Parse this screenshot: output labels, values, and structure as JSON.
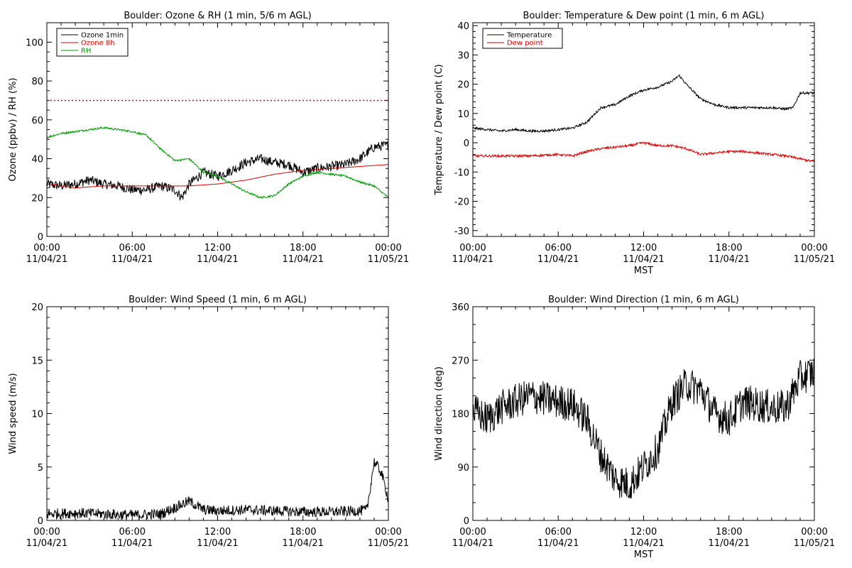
{
  "colors": {
    "black": "#000000",
    "red": "#e00000",
    "green": "#00a000",
    "background": "#ffffff"
  },
  "chart_data": [
    {
      "type": "line",
      "title": "Boulder: Ozone & RH (1 min, 5/6 m AGL)",
      "xlabel": "",
      "ylabel": "Ozone (ppbv) / RH (%)",
      "xlim": [
        "2021-11-04T00:00",
        "2021-11-05T00:00"
      ],
      "ylim": [
        0,
        110
      ],
      "yticks": [
        0,
        20,
        40,
        60,
        80,
        100
      ],
      "xticks": [
        {
          "x": "2021-11-04T00:00",
          "time": "00:00",
          "date": "11/04/21"
        },
        {
          "x": "2021-11-04T06:00",
          "time": "06:00",
          "date": "11/04/21"
        },
        {
          "x": "2021-11-04T12:00",
          "time": "12:00",
          "date": "11/04/21"
        },
        {
          "x": "2021-11-04T18:00",
          "time": "18:00",
          "date": "11/04/21"
        },
        {
          "x": "2021-11-05T00:00",
          "time": "00:00",
          "date": "11/05/21"
        }
      ],
      "legend_position": "top-left",
      "reference_lines": [
        {
          "y": 70,
          "color": "#e00000",
          "style": "dotted"
        }
      ],
      "series": [
        {
          "name": "Ozone 1min",
          "color": "#000000",
          "noise": 2.5,
          "x": [
            "2021-11-04T00:00",
            "2021-11-04T01:00",
            "2021-11-04T02:00",
            "2021-11-04T03:00",
            "2021-11-04T04:00",
            "2021-11-04T05:00",
            "2021-11-04T06:00",
            "2021-11-04T07:00",
            "2021-11-04T08:00",
            "2021-11-04T09:00",
            "2021-11-04T09:30",
            "2021-11-04T10:00",
            "2021-11-04T11:00",
            "2021-11-04T12:00",
            "2021-11-04T13:00",
            "2021-11-04T14:00",
            "2021-11-04T15:00",
            "2021-11-04T16:00",
            "2021-11-04T17:00",
            "2021-11-04T18:00",
            "2021-11-04T19:00",
            "2021-11-04T20:00",
            "2021-11-04T21:00",
            "2021-11-04T22:00",
            "2021-11-04T23:00",
            "2021-11-05T00:00"
          ],
          "y": [
            27,
            26,
            27,
            29,
            27,
            26,
            24,
            24,
            26,
            24,
            20,
            27,
            33,
            31,
            34,
            38,
            40,
            38,
            37,
            33,
            35,
            36,
            37,
            40,
            46,
            47
          ]
        },
        {
          "name": "Ozone 8h",
          "color": "#e00000",
          "noise": 0,
          "x": [
            "2021-11-04T00:00",
            "2021-11-04T02:00",
            "2021-11-04T04:00",
            "2021-11-04T06:00",
            "2021-11-04T08:00",
            "2021-11-04T10:00",
            "2021-11-04T12:00",
            "2021-11-04T14:00",
            "2021-11-04T16:00",
            "2021-11-04T18:00",
            "2021-11-04T20:00",
            "2021-11-04T22:00",
            "2021-11-05T00:00"
          ],
          "y": [
            27,
            25,
            26,
            26,
            26,
            26,
            27,
            29,
            32,
            34,
            35,
            36,
            37
          ]
        },
        {
          "name": "RH",
          "color": "#00a000",
          "noise": 0.5,
          "x": [
            "2021-11-04T00:00",
            "2021-11-04T01:00",
            "2021-11-04T02:00",
            "2021-11-04T03:00",
            "2021-11-04T04:00",
            "2021-11-04T05:00",
            "2021-11-04T06:00",
            "2021-11-04T07:00",
            "2021-11-04T08:00",
            "2021-11-04T09:00",
            "2021-11-04T10:00",
            "2021-11-04T11:00",
            "2021-11-04T12:00",
            "2021-11-04T13:00",
            "2021-11-04T14:00",
            "2021-11-04T15:00",
            "2021-11-04T16:00",
            "2021-11-04T17:00",
            "2021-11-04T18:00",
            "2021-11-04T19:00",
            "2021-11-04T20:00",
            "2021-11-04T21:00",
            "2021-11-04T22:00",
            "2021-11-04T23:00",
            "2021-11-05T00:00"
          ],
          "y": [
            51,
            53,
            54,
            55,
            56,
            55,
            54,
            52,
            45,
            39,
            40,
            33,
            31,
            27,
            23,
            20,
            21,
            27,
            31,
            33,
            32,
            31,
            28,
            26,
            20
          ]
        }
      ]
    },
    {
      "type": "line",
      "title": "Boulder: Temperature & Dew point (1 min, 6 m AGL)",
      "xlabel": "MST",
      "ylabel": "Temperature / Dew point (C)",
      "xlim": [
        "2021-11-04T00:00",
        "2021-11-05T00:00"
      ],
      "ylim": [
        -32,
        41
      ],
      "yticks": [
        -30,
        -20,
        -10,
        0,
        10,
        20,
        30,
        40
      ],
      "xticks": [
        {
          "x": "2021-11-04T00:00",
          "time": "00:00",
          "date": "11/04/21"
        },
        {
          "x": "2021-11-04T06:00",
          "time": "06:00",
          "date": "11/04/21"
        },
        {
          "x": "2021-11-04T12:00",
          "time": "12:00",
          "date": "11/04/21"
        },
        {
          "x": "2021-11-04T18:00",
          "time": "18:00",
          "date": "11/04/21"
        },
        {
          "x": "2021-11-05T00:00",
          "time": "00:00",
          "date": "11/05/21"
        }
      ],
      "legend_position": "top-left",
      "series": [
        {
          "name": "Temperature",
          "color": "#000000",
          "noise": 0.4,
          "x": [
            "2021-11-04T00:00",
            "2021-11-04T01:00",
            "2021-11-04T02:00",
            "2021-11-04T03:00",
            "2021-11-04T04:00",
            "2021-11-04T05:00",
            "2021-11-04T06:00",
            "2021-11-04T07:00",
            "2021-11-04T08:00",
            "2021-11-04T09:00",
            "2021-11-04T10:00",
            "2021-11-04T11:00",
            "2021-11-04T12:00",
            "2021-11-04T13:00",
            "2021-11-04T14:00",
            "2021-11-04T14:30",
            "2021-11-04T15:00",
            "2021-11-04T16:00",
            "2021-11-04T17:00",
            "2021-11-04T18:00",
            "2021-11-04T19:00",
            "2021-11-04T20:00",
            "2021-11-04T21:00",
            "2021-11-04T22:00",
            "2021-11-04T22:30",
            "2021-11-04T23:00",
            "2021-11-05T00:00"
          ],
          "y": [
            5,
            4.5,
            4,
            4.5,
            4,
            4,
            4.5,
            5,
            7,
            12,
            13,
            16,
            18,
            19,
            21,
            23,
            20,
            15,
            13,
            12,
            12,
            12,
            12,
            11.5,
            12,
            17,
            17
          ]
        },
        {
          "name": "Dew point",
          "color": "#e00000",
          "noise": 0.4,
          "x": [
            "2021-11-04T00:00",
            "2021-11-04T02:00",
            "2021-11-04T04:00",
            "2021-11-04T06:00",
            "2021-11-04T07:00",
            "2021-11-04T08:00",
            "2021-11-04T09:00",
            "2021-11-04T10:00",
            "2021-11-04T11:00",
            "2021-11-04T12:00",
            "2021-11-04T13:00",
            "2021-11-04T14:00",
            "2021-11-04T15:00",
            "2021-11-04T16:00",
            "2021-11-04T17:00",
            "2021-11-04T18:00",
            "2021-11-04T19:00",
            "2021-11-04T20:00",
            "2021-11-04T21:00",
            "2021-11-04T22:00",
            "2021-11-04T23:00",
            "2021-11-05T00:00"
          ],
          "y": [
            -4.5,
            -4.5,
            -4.5,
            -4,
            -4.5,
            -3,
            -2,
            -1.5,
            -1,
            0,
            -1,
            -1,
            -2,
            -4,
            -3.5,
            -3,
            -3,
            -3.5,
            -4,
            -4.5,
            -5.5,
            -6.5
          ]
        }
      ]
    },
    {
      "type": "line",
      "title": "Boulder: Wind Speed (1 min, 6 m AGL)",
      "xlabel": "",
      "ylabel": "Wind speed (m/s)",
      "xlim": [
        "2021-11-04T00:00",
        "2021-11-05T00:00"
      ],
      "ylim": [
        0,
        20
      ],
      "yticks": [
        0,
        5,
        10,
        15,
        20
      ],
      "xticks": [
        {
          "x": "2021-11-04T00:00",
          "time": "00:00",
          "date": "11/04/21"
        },
        {
          "x": "2021-11-04T06:00",
          "time": "06:00",
          "date": "11/04/21"
        },
        {
          "x": "2021-11-04T12:00",
          "time": "12:00",
          "date": "11/04/21"
        },
        {
          "x": "2021-11-04T18:00",
          "time": "18:00",
          "date": "11/04/21"
        },
        {
          "x": "2021-11-05T00:00",
          "time": "00:00",
          "date": "11/05/21"
        }
      ],
      "series": [
        {
          "name": "",
          "color": "#000000",
          "noise": 0.5,
          "floor": 0,
          "x": [
            "2021-11-04T00:00",
            "2021-11-04T02:00",
            "2021-11-04T04:00",
            "2021-11-04T06:00",
            "2021-11-04T08:00",
            "2021-11-04T09:00",
            "2021-11-04T10:00",
            "2021-11-04T11:00",
            "2021-11-04T12:00",
            "2021-11-04T14:00",
            "2021-11-04T16:00",
            "2021-11-04T18:00",
            "2021-11-04T20:00",
            "2021-11-04T22:00",
            "2021-11-04T22:30",
            "2021-11-04T23:00",
            "2021-11-04T23:30",
            "2021-11-05T00:00"
          ],
          "y": [
            0.6,
            0.7,
            0.6,
            0.5,
            0.6,
            1.2,
            1.8,
            1.0,
            0.9,
            1.0,
            0.9,
            0.8,
            0.8,
            0.9,
            1.0,
            5.5,
            4.5,
            2.0
          ]
        }
      ]
    },
    {
      "type": "line",
      "title": "Boulder: Wind Direction (1 min, 6 m AGL)",
      "xlabel": "MST",
      "ylabel": "Wind direction (deg)",
      "xlim": [
        "2021-11-04T00:00",
        "2021-11-05T00:00"
      ],
      "ylim": [
        0,
        360
      ],
      "yticks": [
        0,
        90,
        180,
        270,
        360
      ],
      "xticks": [
        {
          "x": "2021-11-04T00:00",
          "time": "00:00",
          "date": "11/04/21"
        },
        {
          "x": "2021-11-04T06:00",
          "time": "06:00",
          "date": "11/04/21"
        },
        {
          "x": "2021-11-04T12:00",
          "time": "12:00",
          "date": "11/04/21"
        },
        {
          "x": "2021-11-04T18:00",
          "time": "18:00",
          "date": "11/04/21"
        },
        {
          "x": "2021-11-05T00:00",
          "time": "00:00",
          "date": "11/05/21"
        }
      ],
      "series": [
        {
          "name": "",
          "color": "#000000",
          "noise": 30,
          "floor": 0,
          "ceil": 360,
          "x": [
            "2021-11-04T00:00",
            "2021-11-04T01:00",
            "2021-11-04T02:00",
            "2021-11-04T03:00",
            "2021-11-04T04:00",
            "2021-11-04T05:00",
            "2021-11-04T06:00",
            "2021-11-04T07:00",
            "2021-11-04T08:00",
            "2021-11-04T09:00",
            "2021-11-04T10:00",
            "2021-11-04T11:00",
            "2021-11-04T12:00",
            "2021-11-04T13:00",
            "2021-11-04T14:00",
            "2021-11-04T15:00",
            "2021-11-04T16:00",
            "2021-11-04T17:00",
            "2021-11-04T18:00",
            "2021-11-04T19:00",
            "2021-11-04T20:00",
            "2021-11-04T21:00",
            "2021-11-04T22:00",
            "2021-11-04T23:00",
            "2021-11-05T00:00"
          ],
          "y": [
            185,
            170,
            190,
            200,
            210,
            205,
            200,
            195,
            170,
            110,
            70,
            60,
            90,
            120,
            200,
            230,
            220,
            180,
            170,
            200,
            195,
            190,
            190,
            240,
            250
          ]
        }
      ]
    }
  ]
}
